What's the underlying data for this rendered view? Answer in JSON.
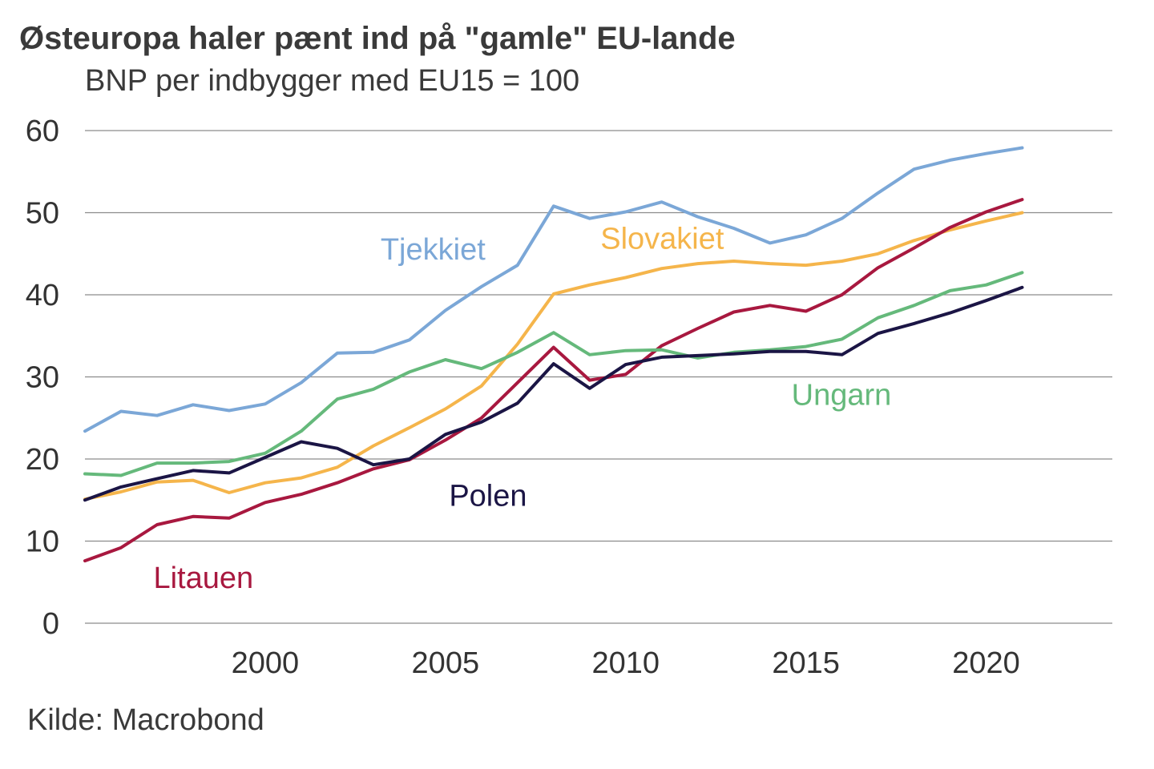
{
  "chart_data": {
    "type": "line",
    "title": "Østeuropa haler pænt ind på \"gamle\" EU-lande",
    "subtitle": "BNP per indbygger med EU15 = 100",
    "source": "Kilde: Macrobond",
    "xlabel": "",
    "ylabel": "",
    "xlim": [
      1995,
      2023.5
    ],
    "ylim": [
      0,
      60
    ],
    "yticks": [
      0,
      10,
      20,
      30,
      40,
      50,
      60
    ],
    "xticks": [
      2000,
      2005,
      2010,
      2015,
      2020
    ],
    "grid": true,
    "x": [
      1995,
      1996,
      1997,
      1998,
      1999,
      2000,
      2001,
      2002,
      2003,
      2004,
      2005,
      2006,
      2007,
      2008,
      2009,
      2010,
      2011,
      2012,
      2013,
      2014,
      2015,
      2016,
      2017,
      2018,
      2019,
      2020,
      2021
    ],
    "series": [
      {
        "name": "Tjekkiet",
        "color": "#7ba7d7",
        "values": [
          23.4,
          25.8,
          25.3,
          26.6,
          25.9,
          26.7,
          29.3,
          32.9,
          33.0,
          34.5,
          38.1,
          41.0,
          43.6,
          50.8,
          49.3,
          50.1,
          51.3,
          49.5,
          48.1,
          46.3,
          47.3,
          49.3,
          52.4,
          55.3,
          56.4,
          57.2,
          57.9
        ]
      },
      {
        "name": "Slovakiet",
        "color": "#f5b54b",
        "values": [
          15.1,
          16.0,
          17.2,
          17.4,
          15.9,
          17.1,
          17.7,
          19.0,
          21.6,
          23.8,
          26.1,
          28.9,
          34.0,
          40.1,
          41.2,
          42.1,
          43.2,
          43.8,
          44.1,
          43.8,
          43.6,
          44.1,
          45.0,
          46.6,
          47.9,
          49.0,
          50.0
        ]
      },
      {
        "name": "Litauen",
        "color": "#a8183f",
        "values": [
          7.6,
          9.2,
          12.0,
          13.0,
          12.8,
          14.7,
          15.7,
          17.1,
          18.8,
          19.9,
          22.3,
          25.0,
          29.3,
          33.6,
          29.6,
          30.3,
          33.8,
          35.9,
          37.9,
          38.7,
          38.0,
          40.0,
          43.3,
          45.7,
          48.2,
          50.1,
          51.6
        ]
      },
      {
        "name": "Ungarn",
        "color": "#65b97b",
        "values": [
          18.2,
          18.0,
          19.5,
          19.5,
          19.7,
          20.7,
          23.4,
          27.3,
          28.5,
          30.6,
          32.1,
          31.0,
          33.0,
          35.4,
          32.7,
          33.2,
          33.3,
          32.3,
          33.0,
          33.3,
          33.7,
          34.6,
          37.2,
          38.7,
          40.5,
          41.2,
          42.7
        ]
      },
      {
        "name": "Polen",
        "color": "#1b1545",
        "values": [
          15.0,
          16.6,
          17.6,
          18.6,
          18.3,
          20.2,
          22.1,
          21.3,
          19.3,
          20.0,
          23.0,
          24.5,
          26.8,
          31.6,
          28.6,
          31.5,
          32.4,
          32.6,
          32.8,
          33.1,
          33.1,
          32.7,
          35.3,
          36.5,
          37.8,
          39.3,
          40.9
        ]
      }
    ],
    "labels": [
      {
        "text": "Tjekkiet",
        "series": "Tjekkiet",
        "x": 2003.2,
        "y": 44.3,
        "color": "#7ba7d7"
      },
      {
        "text": "Slovakiet",
        "series": "Slovakiet",
        "x": 2009.3,
        "y": 45.6,
        "color": "#f5b54b"
      },
      {
        "text": "Ungarn",
        "series": "Ungarn",
        "x": 2014.6,
        "y": 26.6,
        "color": "#65b97b"
      },
      {
        "text": "Polen",
        "series": "Polen",
        "x": 2005.1,
        "y": 14.3,
        "color": "#1b1545"
      },
      {
        "text": "Litauen",
        "series": "Litauen",
        "x": 1996.9,
        "y": 4.3,
        "color": "#a8183f"
      }
    ]
  }
}
